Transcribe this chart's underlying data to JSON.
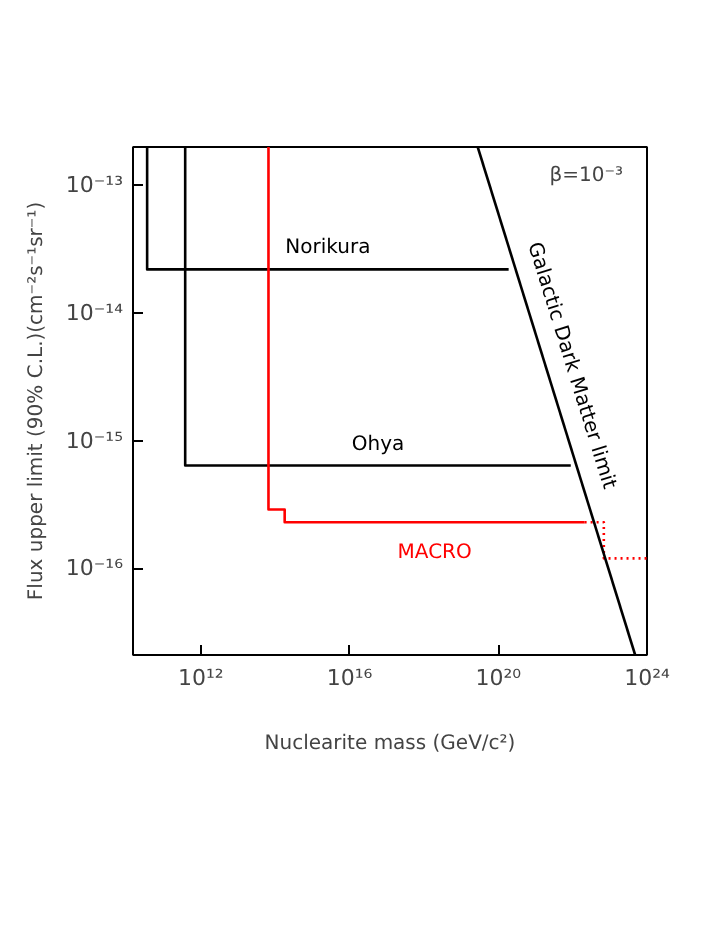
{
  "chart_data": {
    "type": "step",
    "xlabel": "Nuclearite mass (GeV/c²)",
    "ylabel": "Flux upper limit (90% C.L.)(cm⁻²s⁻¹sr⁻¹)",
    "log": "xy",
    "grid": false,
    "legend": false,
    "marker": "none",
    "xlim": [
      15000000000.0,
      1e+24
    ],
    "ylim": [
      2.1e-17,
      2e-13
    ],
    "xticks": [
      {
        "value": 1000000000000.0,
        "label": "10¹²"
      },
      {
        "value": 1e+16,
        "label": "10¹⁶"
      },
      {
        "value": 1e+20,
        "label": "10²⁰"
      },
      {
        "value": 1e+24,
        "label": "10²⁴"
      }
    ],
    "yticks": [
      {
        "value": 1e-16,
        "label": "10⁻¹⁶"
      },
      {
        "value": 1e-15,
        "label": "10⁻¹⁵"
      },
      {
        "value": 1e-14,
        "label": "10⁻¹⁴"
      },
      {
        "value": 1e-13,
        "label": "10⁻¹³"
      }
    ],
    "series": [
      {
        "name": "Norikura",
        "color": "#000000",
        "line_style": "solid",
        "x": [
          36000000000.0,
          36000000000.0,
          1.9e+20
        ],
        "values": [
          2e-13,
          2.2e-14,
          2.2e-14
        ]
      },
      {
        "name": "Ohya",
        "color": "#000000",
        "line_style": "solid",
        "x": [
          380000000000.0,
          380000000000.0,
          8.9e+21
        ],
        "values": [
          2e-13,
          6.4e-16,
          6.4e-16
        ]
      },
      {
        "name": "MACRO",
        "color": "#ff0000",
        "line_style": "solid",
        "x": [
          66000000000000.0,
          66000000000000.0,
          180000000000000.0,
          180000000000000.0,
          2.1e+22
        ],
        "values": [
          2e-13,
          2.9e-16,
          2.9e-16,
          2.3e-16,
          2.3e-16
        ]
      },
      {
        "color": "#ff0000",
        "line_style": "dotted",
        "x": [
          2.1e+22,
          6.9e+22,
          6.9e+22,
          1e+24
        ],
        "values": [
          2.3e-16,
          2.3e-16,
          1.2e-16,
          1.2e-16
        ]
      },
      {
        "type": "line",
        "name": "Galactic Dark Matter limit",
        "color": "#000000",
        "line_style": "solid",
        "x": [
          2.8e+19,
          4.8e+23
        ],
        "values": [
          2e-13,
          2.1e-17
        ]
      }
    ],
    "annotations": [
      "β=10⁻³"
    ]
  }
}
